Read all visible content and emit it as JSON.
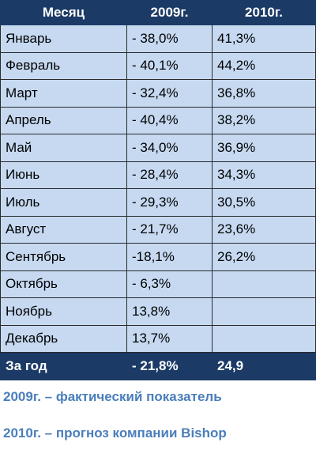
{
  "table": {
    "header": [
      "Месяц",
      "2009г.",
      "2010г."
    ],
    "rows": [
      [
        "Январь",
        "- 38,0%",
        "41,3%"
      ],
      [
        "Февраль",
        "- 40,1%",
        "44,2%"
      ],
      [
        "Март",
        "- 32,4%",
        "36,8%"
      ],
      [
        "Апрель",
        "- 40,4%",
        "38,2%"
      ],
      [
        "Май",
        "- 34,0%",
        "36,9%"
      ],
      [
        "Июнь",
        "- 28,4%",
        "34,3%"
      ],
      [
        "Июль",
        "- 29,3%",
        "30,5%"
      ],
      [
        "Август",
        "- 21,7%",
        "23,6%"
      ],
      [
        "Сентябрь",
        "-18,1%",
        "26,2%"
      ],
      [
        "Октябрь",
        "- 6,3%",
        ""
      ],
      [
        "Ноябрь",
        "13,8%",
        ""
      ],
      [
        "Декабрь",
        "13,7%",
        ""
      ]
    ],
    "total": [
      "За год",
      "- 21,8%",
      "24,9"
    ]
  },
  "notes": [
    "2009г. – фактический показатель",
    "2010г. – прогноз компании Bishop"
  ]
}
